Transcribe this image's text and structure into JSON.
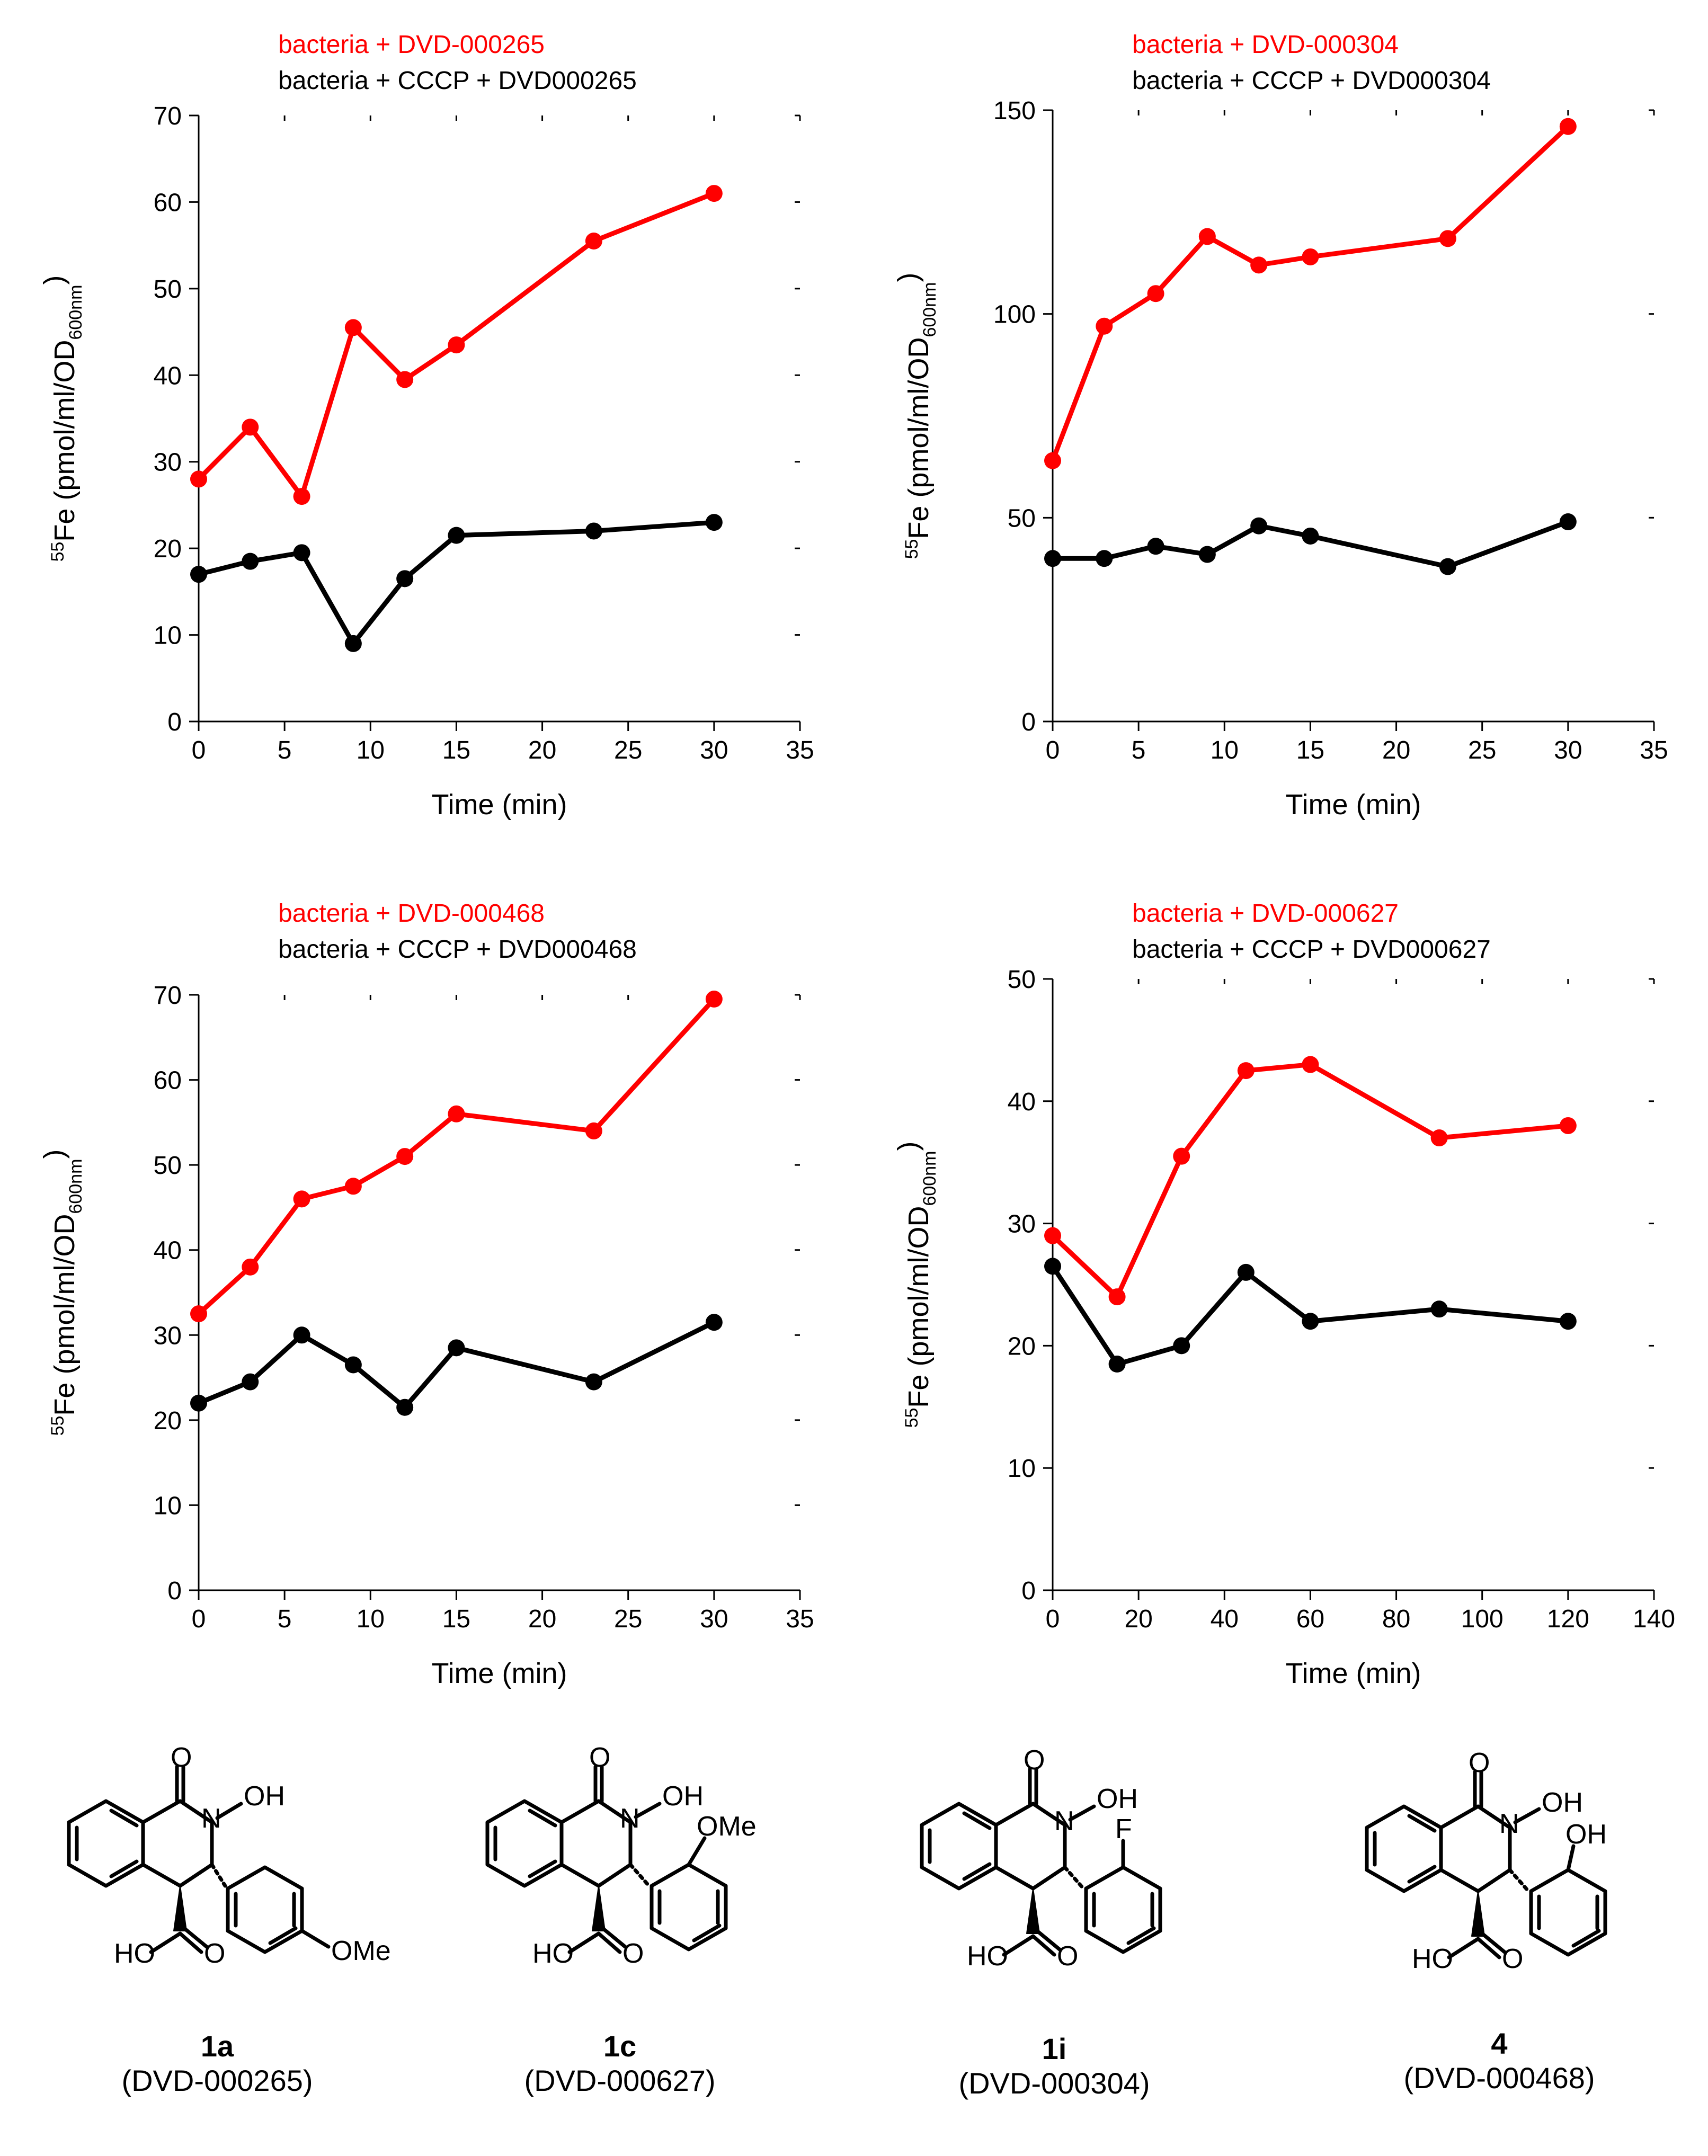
{
  "chart_data": [
    {
      "type": "line",
      "legend": [
        "bacteria + DVD-000265",
        "bacteria + CCCP + DVD000265"
      ],
      "xlabel": "Time (min)",
      "ylabel_iso": "55",
      "ylabel_main": "Fe (pmol/ml/OD",
      "ylabel_sub": "600nm",
      "ylabel_close": ")",
      "xlim": [
        0,
        35
      ],
      "ylim": [
        0,
        70
      ],
      "xticks": [
        0,
        5,
        10,
        15,
        20,
        25,
        30,
        35
      ],
      "yticks": [
        0,
        10,
        20,
        30,
        40,
        50,
        60,
        70
      ],
      "series": [
        {
          "name": "bacteria + DVD-000265",
          "color": "#ff0000",
          "x": [
            0,
            3,
            6,
            9,
            12,
            15,
            23,
            30
          ],
          "y": [
            28,
            34,
            26,
            45.5,
            39.5,
            43.5,
            55.5,
            61
          ]
        },
        {
          "name": "bacteria + CCCP + DVD000265",
          "color": "#000000",
          "x": [
            0,
            3,
            6,
            9,
            12,
            15,
            23,
            30
          ],
          "y": [
            17,
            18.5,
            19.5,
            9,
            16.5,
            21.5,
            22,
            23
          ]
        }
      ]
    },
    {
      "type": "line",
      "legend": [
        "bacteria + DVD-000304",
        "bacteria + CCCP + DVD000304"
      ],
      "xlabel": "Time (min)",
      "ylabel_iso": "55",
      "ylabel_main": "Fe (pmol/ml/OD",
      "ylabel_sub": "600nm",
      "ylabel_close": ")",
      "xlim": [
        0,
        35
      ],
      "ylim": [
        0,
        150
      ],
      "xticks": [
        0,
        5,
        10,
        15,
        20,
        25,
        30,
        35
      ],
      "yticks": [
        0,
        50,
        100,
        150
      ],
      "series": [
        {
          "name": "bacteria + DVD-000304",
          "color": "#ff0000",
          "x": [
            0,
            3,
            6,
            9,
            12,
            15,
            23,
            30
          ],
          "y": [
            64,
            97,
            105,
            119,
            112,
            114,
            118.5,
            146
          ]
        },
        {
          "name": "bacteria + CCCP + DVD000304",
          "color": "#000000",
          "x": [
            0,
            3,
            6,
            9,
            12,
            15,
            23,
            30
          ],
          "y": [
            40,
            40,
            43,
            41,
            48,
            45.5,
            38,
            49
          ]
        }
      ]
    },
    {
      "type": "line",
      "legend": [
        "bacteria + DVD-000468",
        "bacteria + CCCP + DVD000468"
      ],
      "xlabel": "Time (min)",
      "ylabel_iso": "55",
      "ylabel_main": "Fe (pmol/ml/OD",
      "ylabel_sub": "600nm",
      "ylabel_close": ")",
      "xlim": [
        0,
        35
      ],
      "ylim": [
        0,
        70
      ],
      "xticks": [
        0,
        5,
        10,
        15,
        20,
        25,
        30,
        35
      ],
      "yticks": [
        0,
        10,
        20,
        30,
        40,
        50,
        60,
        70
      ],
      "series": [
        {
          "name": "bacteria + DVD-000468",
          "color": "#ff0000",
          "x": [
            0,
            3,
            6,
            9,
            12,
            15,
            23,
            30
          ],
          "y": [
            32.5,
            38,
            46,
            47.5,
            51,
            56,
            54,
            69.5
          ]
        },
        {
          "name": "bacteria + CCCP + DVD000468",
          "color": "#000000",
          "x": [
            0,
            3,
            6,
            9,
            12,
            15,
            23,
            30
          ],
          "y": [
            22,
            24.5,
            30,
            26.5,
            21.5,
            28.5,
            24.5,
            31.5
          ]
        }
      ]
    },
    {
      "type": "line",
      "legend": [
        "bacteria + DVD-000627",
        "bacteria + CCCP + DVD000627"
      ],
      "xlabel": "Time (min)",
      "ylabel_iso": "55",
      "ylabel_main": "Fe (pmol/ml/OD",
      "ylabel_sub": "600nm",
      "ylabel_close": ")",
      "xlim": [
        0,
        140
      ],
      "ylim": [
        0,
        50
      ],
      "xticks": [
        0,
        20,
        40,
        60,
        80,
        100,
        120,
        140
      ],
      "yticks": [
        0,
        10,
        20,
        30,
        40,
        50
      ],
      "series": [
        {
          "name": "bacteria + DVD-000627",
          "color": "#ff0000",
          "x": [
            0,
            15,
            30,
            45,
            60,
            90,
            120
          ],
          "y": [
            29,
            24,
            35.5,
            42.5,
            43,
            37,
            38
          ]
        },
        {
          "name": "bacteria + CCCP + DVD000627",
          "color": "#000000",
          "x": [
            0,
            15,
            30,
            45,
            60,
            90,
            120
          ],
          "y": [
            26.5,
            18.5,
            20,
            26,
            22,
            23,
            22
          ]
        }
      ]
    }
  ],
  "compounds": [
    {
      "number": "1a",
      "code": "(DVD-000265)",
      "substituent": "OMe",
      "position": "para",
      "atoms": {
        "oxo": "O",
        "n": "N",
        "oh": "OH",
        "ho": "HO",
        "acid_o": "O"
      }
    },
    {
      "number": "1c",
      "code": "(DVD-000627)",
      "substituent": "OMe",
      "position": "ortho",
      "atoms": {
        "oxo": "O",
        "n": "N",
        "oh": "OH",
        "ho": "HO",
        "acid_o": "O"
      }
    },
    {
      "number": "1i",
      "code": "(DVD-000304)",
      "substituent": "F",
      "position": "ortho",
      "atoms": {
        "oxo": "O",
        "n": "N",
        "oh": "OH",
        "ho": "HO",
        "acid_o": "O"
      }
    },
    {
      "number": "4",
      "code": "(DVD-000468)",
      "substituent": "OH",
      "position": "ortho",
      "atoms": {
        "oxo": "O",
        "n": "N",
        "oh": "OH",
        "ho": "HO",
        "acid_o": "O"
      }
    }
  ]
}
